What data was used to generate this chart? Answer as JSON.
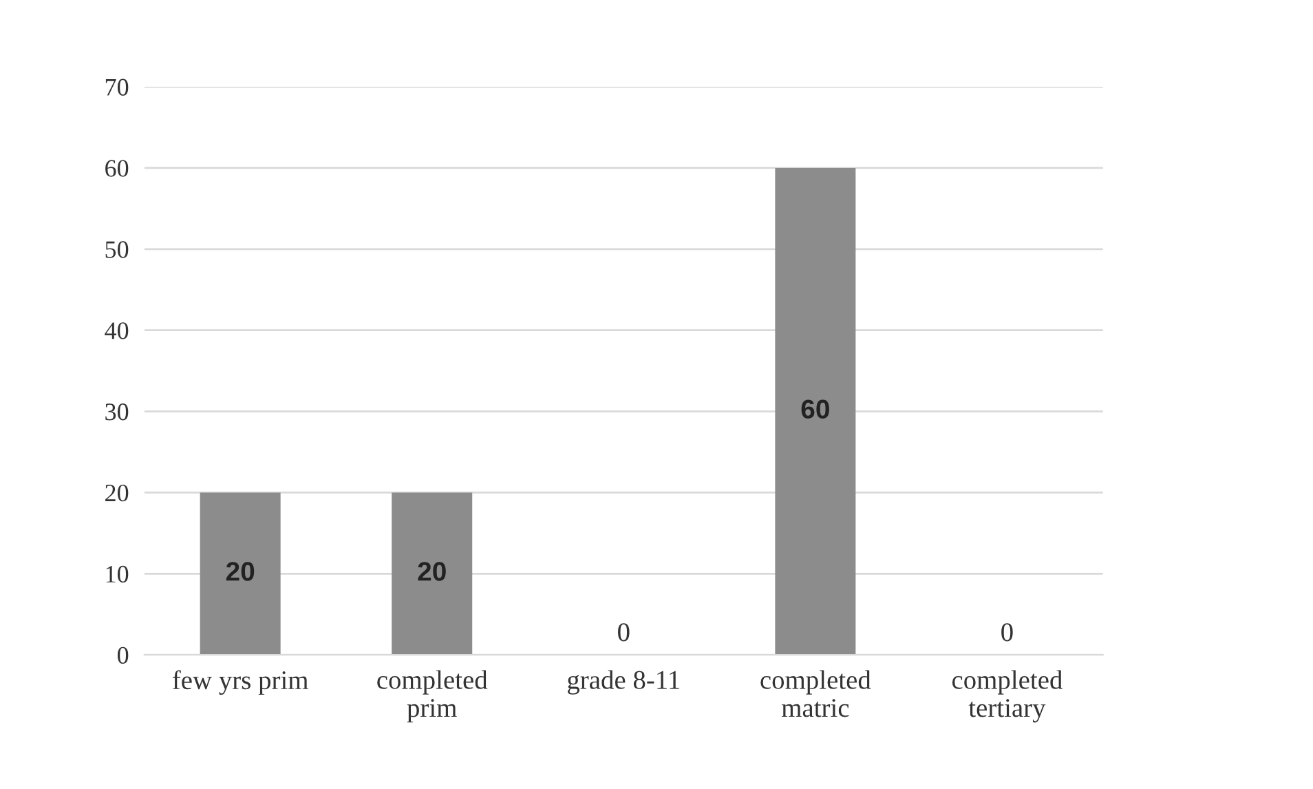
{
  "chart_data": {
    "type": "bar",
    "categories": [
      "few yrs prim",
      "completed\nprim",
      "grade 8-11",
      "completed\nmatric",
      "completed\ntertiary"
    ],
    "values": [
      20,
      20,
      0,
      60,
      0
    ],
    "color": "#8c8c8c",
    "ylim": [
      0,
      70
    ],
    "yticks": [
      0,
      10,
      20,
      30,
      40,
      50,
      60,
      70
    ],
    "grid": "y",
    "data_labels": true,
    "legend": false
  }
}
